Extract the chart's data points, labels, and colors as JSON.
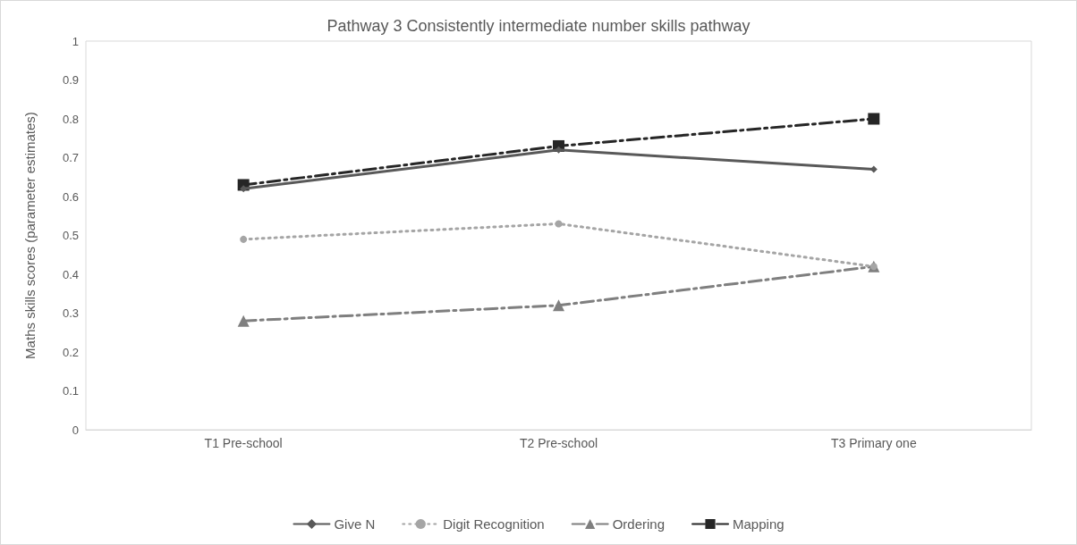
{
  "chart_data": {
    "type": "line",
    "title": "Pathway 3 Consistently intermediate number skills pathway",
    "ylabel": "Maths skills scores (parameter estimates)",
    "categories": [
      "T1 Pre-school",
      "T2 Pre-school",
      "T3 Primary one"
    ],
    "series": [
      {
        "name": "Give N",
        "color": "#595959",
        "marker": "diamond",
        "line_style": "solid",
        "values": [
          0.62,
          0.72,
          0.67
        ]
      },
      {
        "name": "Digit Recognition",
        "color": "#a5a5a5",
        "marker": "circle",
        "line_style": "dotted",
        "values": [
          0.49,
          0.53,
          0.42
        ]
      },
      {
        "name": "Ordering",
        "color": "#7f7f7f",
        "marker": "triangle",
        "line_style": "dashed",
        "values": [
          0.28,
          0.32,
          0.42
        ]
      },
      {
        "name": "Mapping",
        "color": "#262626",
        "marker": "square",
        "line_style": "dashed",
        "values": [
          0.63,
          0.73,
          0.8
        ]
      }
    ],
    "ylim": [
      0,
      1
    ],
    "yticks": [
      0,
      0.1,
      0.2,
      0.3,
      0.4,
      0.5,
      0.6,
      0.7,
      0.8,
      0.9,
      1
    ],
    "grid": false,
    "legend": "bottom"
  }
}
